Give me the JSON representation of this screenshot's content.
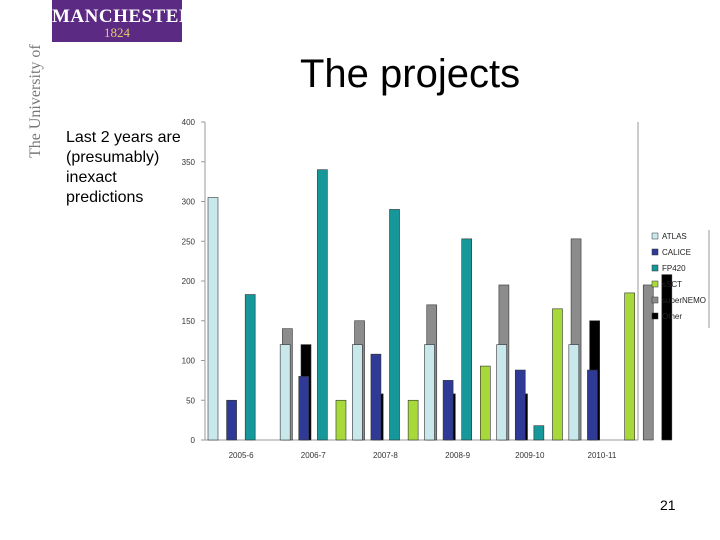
{
  "logo": {
    "name": "MANCHESTER",
    "year": "1824",
    "alt": "The University of Manchester",
    "color": "#5b2a82"
  },
  "slide": {
    "title": "The projects",
    "note": "Last 2 years are\n(presumably)\ninexact\npredictions",
    "page_number": "21"
  },
  "chart_data": {
    "type": "bar",
    "categories": [
      "2005-6",
      "2006-7",
      "2007-8",
      "2008-9",
      "2009-10",
      "2010-11"
    ],
    "series": [
      {
        "name": "ATLAS",
        "color": "#c9e8ec",
        "values": [
          305,
          120,
          120,
          120,
          120,
          120
        ]
      },
      {
        "name": "CALICE",
        "color": "#2e3a96",
        "values": [
          50,
          80,
          108,
          75,
          88,
          88
        ]
      },
      {
        "name": "FP420",
        "color": "#16979a",
        "values": [
          183,
          340,
          290,
          253,
          18,
          0
        ]
      },
      {
        "name": "sSCT",
        "color": "#a8d93a",
        "values": [
          0,
          50,
          50,
          93,
          165,
          185
        ]
      },
      {
        "name": "superNEMO",
        "color": "#8c8c8c",
        "values": [
          140,
          150,
          170,
          195,
          253,
          195
        ]
      },
      {
        "name": "Other",
        "color": "#000000",
        "values": [
          120,
          58,
          58,
          58,
          150,
          208
        ]
      }
    ],
    "ylim": [
      0,
      400
    ],
    "yticks": [
      0,
      50,
      100,
      150,
      200,
      250,
      300,
      350,
      400
    ],
    "grid": false,
    "legend": "right"
  }
}
